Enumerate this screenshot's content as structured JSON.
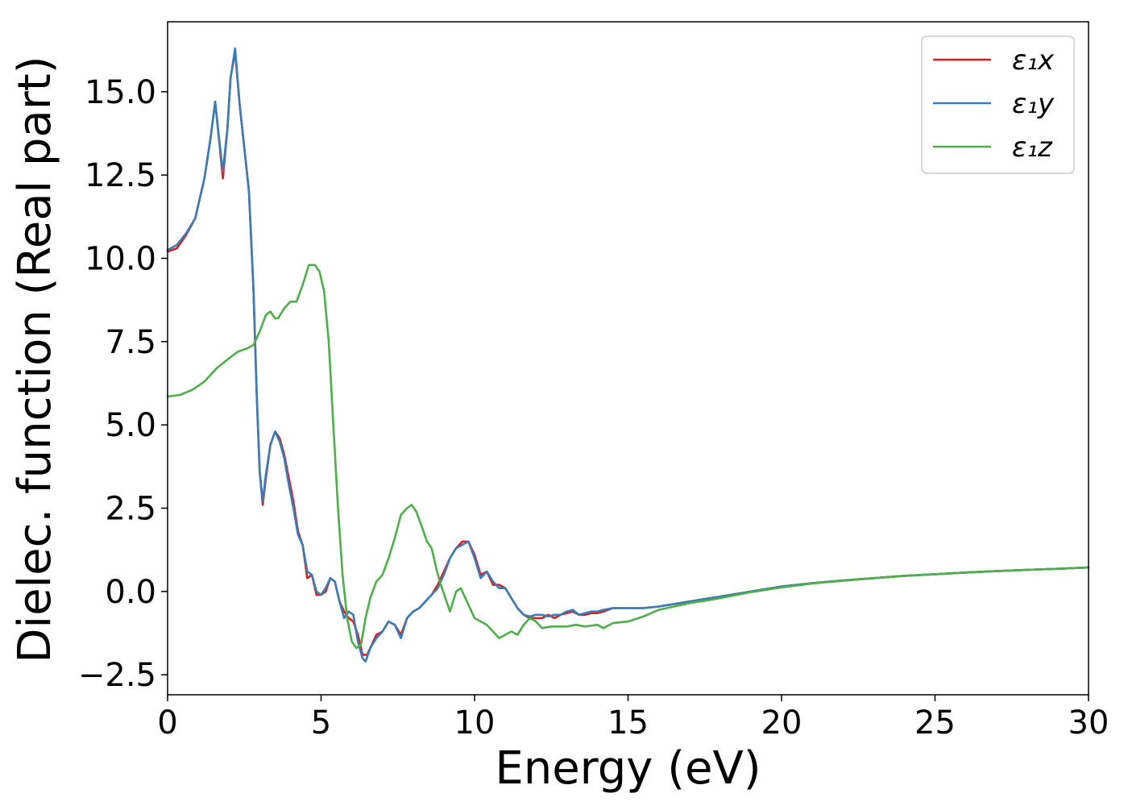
{
  "chart_data": {
    "type": "line",
    "title": "",
    "xlabel": "Energy (eV)",
    "ylabel": "Dielec. function (Real part)",
    "xlim": [
      0,
      30
    ],
    "ylim": [
      -3.1,
      17.1
    ],
    "xticks": [
      0,
      5,
      10,
      15,
      20,
      25,
      30
    ],
    "xtick_labels": [
      "0",
      "5",
      "10",
      "15",
      "20",
      "25",
      "30"
    ],
    "yticks": [
      -2.5,
      0.0,
      2.5,
      5.0,
      7.5,
      10.0,
      12.5,
      15.0
    ],
    "ytick_labels": [
      "−2.5",
      "0.0",
      "2.5",
      "5.0",
      "7.5",
      "10.0",
      "12.5",
      "15.0"
    ],
    "grid": false,
    "legend_position": "top-right",
    "series": [
      {
        "name": "ε₁x",
        "color": "#e41a1c",
        "points": [
          [
            0,
            10.2
          ],
          [
            0.3,
            10.3
          ],
          [
            0.6,
            10.7
          ],
          [
            0.9,
            11.2
          ],
          [
            1.2,
            12.4
          ],
          [
            1.4,
            13.6
          ],
          [
            1.55,
            14.7
          ],
          [
            1.65,
            13.8
          ],
          [
            1.8,
            12.4
          ],
          [
            1.95,
            13.9
          ],
          [
            2.05,
            15.4
          ],
          [
            2.2,
            16.2
          ],
          [
            2.35,
            14.6
          ],
          [
            2.5,
            13.3
          ],
          [
            2.65,
            12.0
          ],
          [
            2.8,
            9.0
          ],
          [
            2.9,
            6.0
          ],
          [
            3.0,
            3.6
          ],
          [
            3.1,
            2.6
          ],
          [
            3.2,
            3.4
          ],
          [
            3.35,
            4.4
          ],
          [
            3.5,
            4.8
          ],
          [
            3.65,
            4.6
          ],
          [
            3.8,
            4.1
          ],
          [
            3.95,
            3.4
          ],
          [
            4.1,
            2.7
          ],
          [
            4.25,
            1.8
          ],
          [
            4.4,
            1.4
          ],
          [
            4.55,
            0.4
          ],
          [
            4.7,
            0.5
          ],
          [
            4.85,
            -0.1
          ],
          [
            5.0,
            -0.1
          ],
          [
            5.15,
            0.0
          ],
          [
            5.3,
            0.4
          ],
          [
            5.45,
            0.3
          ],
          [
            5.6,
            -0.3
          ],
          [
            5.75,
            -0.6
          ],
          [
            5.9,
            -0.8
          ],
          [
            6.05,
            -0.9
          ],
          [
            6.2,
            -1.3
          ],
          [
            6.35,
            -1.9
          ],
          [
            6.5,
            -1.9
          ],
          [
            6.65,
            -1.6
          ],
          [
            6.8,
            -1.3
          ],
          [
            7.0,
            -1.2
          ],
          [
            7.2,
            -0.9
          ],
          [
            7.4,
            -1.0
          ],
          [
            7.6,
            -1.3
          ],
          [
            7.8,
            -0.8
          ],
          [
            8.0,
            -0.6
          ],
          [
            8.2,
            -0.5
          ],
          [
            8.4,
            -0.3
          ],
          [
            8.6,
            -0.1
          ],
          [
            8.8,
            0.2
          ],
          [
            9.0,
            0.6
          ],
          [
            9.2,
            1.0
          ],
          [
            9.4,
            1.3
          ],
          [
            9.6,
            1.5
          ],
          [
            9.8,
            1.5
          ],
          [
            10.0,
            1.1
          ],
          [
            10.2,
            0.5
          ],
          [
            10.4,
            0.6
          ],
          [
            10.6,
            0.2
          ],
          [
            10.8,
            0.2
          ],
          [
            11.0,
            0.1
          ],
          [
            11.2,
            -0.2
          ],
          [
            11.4,
            -0.5
          ],
          [
            11.6,
            -0.7
          ],
          [
            11.8,
            -0.8
          ],
          [
            12.0,
            -0.8
          ],
          [
            12.2,
            -0.8
          ],
          [
            12.4,
            -0.7
          ],
          [
            12.6,
            -0.8
          ],
          [
            12.8,
            -0.7
          ],
          [
            13.0,
            -0.65
          ],
          [
            13.2,
            -0.6
          ],
          [
            13.4,
            -0.7
          ],
          [
            13.6,
            -0.7
          ],
          [
            13.8,
            -0.65
          ],
          [
            14.0,
            -0.65
          ],
          [
            14.2,
            -0.6
          ],
          [
            14.5,
            -0.5
          ],
          [
            15.0,
            -0.5
          ],
          [
            15.5,
            -0.5
          ],
          [
            16.0,
            -0.45
          ],
          [
            17.0,
            -0.3
          ],
          [
            18.0,
            -0.15
          ],
          [
            19.0,
            0.0
          ],
          [
            20.0,
            0.15
          ],
          [
            21.0,
            0.25
          ],
          [
            22.0,
            0.33
          ],
          [
            23.0,
            0.4
          ],
          [
            24.0,
            0.47
          ],
          [
            25.0,
            0.52
          ],
          [
            26.0,
            0.57
          ],
          [
            27.0,
            0.61
          ],
          [
            28.0,
            0.65
          ],
          [
            29.0,
            0.68
          ],
          [
            30.0,
            0.72
          ]
        ]
      },
      {
        "name": "ε₁y",
        "color": "#377eb8",
        "points": [
          [
            0,
            10.25
          ],
          [
            0.3,
            10.4
          ],
          [
            0.6,
            10.75
          ],
          [
            0.9,
            11.2
          ],
          [
            1.2,
            12.4
          ],
          [
            1.4,
            13.6
          ],
          [
            1.55,
            14.7
          ],
          [
            1.65,
            13.8
          ],
          [
            1.8,
            12.6
          ],
          [
            1.95,
            13.9
          ],
          [
            2.05,
            15.4
          ],
          [
            2.2,
            16.3
          ],
          [
            2.35,
            14.6
          ],
          [
            2.5,
            13.3
          ],
          [
            2.65,
            12.0
          ],
          [
            2.8,
            9.0
          ],
          [
            2.9,
            6.0
          ],
          [
            3.0,
            3.6
          ],
          [
            3.1,
            2.7
          ],
          [
            3.2,
            3.5
          ],
          [
            3.35,
            4.4
          ],
          [
            3.5,
            4.8
          ],
          [
            3.65,
            4.5
          ],
          [
            3.8,
            4.0
          ],
          [
            3.95,
            3.2
          ],
          [
            4.1,
            2.5
          ],
          [
            4.25,
            1.7
          ],
          [
            4.4,
            1.4
          ],
          [
            4.55,
            0.6
          ],
          [
            4.7,
            0.5
          ],
          [
            4.85,
            0.0
          ],
          [
            5.0,
            -0.1
          ],
          [
            5.15,
            0.1
          ],
          [
            5.3,
            0.4
          ],
          [
            5.45,
            0.3
          ],
          [
            5.6,
            -0.3
          ],
          [
            5.75,
            -0.8
          ],
          [
            5.9,
            -0.6
          ],
          [
            6.05,
            -0.7
          ],
          [
            6.2,
            -1.5
          ],
          [
            6.35,
            -2.0
          ],
          [
            6.45,
            -2.1
          ],
          [
            6.6,
            -1.7
          ],
          [
            6.8,
            -1.4
          ],
          [
            7.0,
            -1.2
          ],
          [
            7.2,
            -0.9
          ],
          [
            7.4,
            -1.0
          ],
          [
            7.6,
            -1.4
          ],
          [
            7.8,
            -0.8
          ],
          [
            8.0,
            -0.6
          ],
          [
            8.2,
            -0.5
          ],
          [
            8.4,
            -0.3
          ],
          [
            8.6,
            -0.1
          ],
          [
            8.8,
            0.1
          ],
          [
            9.0,
            0.5
          ],
          [
            9.2,
            1.0
          ],
          [
            9.4,
            1.3
          ],
          [
            9.6,
            1.4
          ],
          [
            9.8,
            1.5
          ],
          [
            10.0,
            1.0
          ],
          [
            10.2,
            0.4
          ],
          [
            10.4,
            0.6
          ],
          [
            10.6,
            0.3
          ],
          [
            10.8,
            0.1
          ],
          [
            11.0,
            0.1
          ],
          [
            11.2,
            -0.2
          ],
          [
            11.4,
            -0.5
          ],
          [
            11.6,
            -0.7
          ],
          [
            11.8,
            -0.75
          ],
          [
            12.0,
            -0.7
          ],
          [
            12.2,
            -0.7
          ],
          [
            12.4,
            -0.75
          ],
          [
            12.6,
            -0.7
          ],
          [
            12.8,
            -0.7
          ],
          [
            13.0,
            -0.6
          ],
          [
            13.2,
            -0.55
          ],
          [
            13.4,
            -0.7
          ],
          [
            13.6,
            -0.65
          ],
          [
            13.8,
            -0.6
          ],
          [
            14.0,
            -0.6
          ],
          [
            14.2,
            -0.55
          ],
          [
            14.5,
            -0.5
          ],
          [
            15.0,
            -0.5
          ],
          [
            15.5,
            -0.5
          ],
          [
            16.0,
            -0.45
          ],
          [
            17.0,
            -0.3
          ],
          [
            18.0,
            -0.15
          ],
          [
            19.0,
            0.0
          ],
          [
            20.0,
            0.15
          ],
          [
            21.0,
            0.25
          ],
          [
            22.0,
            0.33
          ],
          [
            23.0,
            0.4
          ],
          [
            24.0,
            0.47
          ],
          [
            25.0,
            0.52
          ],
          [
            26.0,
            0.57
          ],
          [
            27.0,
            0.61
          ],
          [
            28.0,
            0.65
          ],
          [
            29.0,
            0.68
          ],
          [
            30.0,
            0.72
          ]
        ]
      },
      {
        "name": "ε₁z",
        "color": "#4daf4a",
        "points": [
          [
            0,
            5.85
          ],
          [
            0.4,
            5.9
          ],
          [
            0.8,
            6.05
          ],
          [
            1.2,
            6.3
          ],
          [
            1.6,
            6.7
          ],
          [
            2.0,
            7.0
          ],
          [
            2.3,
            7.2
          ],
          [
            2.6,
            7.3
          ],
          [
            2.8,
            7.4
          ],
          [
            3.0,
            7.8
          ],
          [
            3.2,
            8.3
          ],
          [
            3.35,
            8.4
          ],
          [
            3.5,
            8.2
          ],
          [
            3.6,
            8.2
          ],
          [
            3.8,
            8.5
          ],
          [
            4.0,
            8.7
          ],
          [
            4.2,
            8.7
          ],
          [
            4.4,
            9.2
          ],
          [
            4.6,
            9.8
          ],
          [
            4.8,
            9.8
          ],
          [
            4.95,
            9.6
          ],
          [
            5.1,
            9.0
          ],
          [
            5.25,
            7.5
          ],
          [
            5.4,
            5.0
          ],
          [
            5.55,
            2.5
          ],
          [
            5.7,
            0.5
          ],
          [
            5.85,
            -0.8
          ],
          [
            6.0,
            -1.5
          ],
          [
            6.15,
            -1.7
          ],
          [
            6.3,
            -1.6
          ],
          [
            6.45,
            -0.8
          ],
          [
            6.6,
            -0.2
          ],
          [
            6.8,
            0.3
          ],
          [
            7.0,
            0.5
          ],
          [
            7.2,
            1.0
          ],
          [
            7.4,
            1.6
          ],
          [
            7.6,
            2.3
          ],
          [
            7.8,
            2.5
          ],
          [
            7.95,
            2.6
          ],
          [
            8.1,
            2.4
          ],
          [
            8.3,
            1.9
          ],
          [
            8.45,
            1.5
          ],
          [
            8.6,
            1.3
          ],
          [
            8.75,
            0.7
          ],
          [
            8.9,
            0.2
          ],
          [
            9.05,
            -0.2
          ],
          [
            9.2,
            -0.6
          ],
          [
            9.4,
            0.0
          ],
          [
            9.55,
            0.1
          ],
          [
            9.7,
            -0.2
          ],
          [
            9.85,
            -0.5
          ],
          [
            10.0,
            -0.8
          ],
          [
            10.2,
            -0.9
          ],
          [
            10.4,
            -1.0
          ],
          [
            10.6,
            -1.2
          ],
          [
            10.8,
            -1.4
          ],
          [
            11.0,
            -1.3
          ],
          [
            11.2,
            -1.2
          ],
          [
            11.4,
            -1.3
          ],
          [
            11.6,
            -1.0
          ],
          [
            11.8,
            -0.8
          ],
          [
            12.0,
            -0.9
          ],
          [
            12.2,
            -1.1
          ],
          [
            12.5,
            -1.05
          ],
          [
            12.8,
            -1.05
          ],
          [
            13.0,
            -1.05
          ],
          [
            13.3,
            -1.0
          ],
          [
            13.6,
            -1.05
          ],
          [
            14.0,
            -1.0
          ],
          [
            14.2,
            -1.1
          ],
          [
            14.5,
            -0.95
          ],
          [
            15.0,
            -0.9
          ],
          [
            15.5,
            -0.75
          ],
          [
            16.0,
            -0.55
          ],
          [
            16.5,
            -0.45
          ],
          [
            17.0,
            -0.35
          ],
          [
            17.5,
            -0.28
          ],
          [
            18.0,
            -0.2
          ],
          [
            19.0,
            -0.02
          ],
          [
            20.0,
            0.12
          ],
          [
            21.0,
            0.24
          ],
          [
            22.0,
            0.32
          ],
          [
            23.0,
            0.4
          ],
          [
            24.0,
            0.47
          ],
          [
            25.0,
            0.52
          ],
          [
            26.0,
            0.57
          ],
          [
            27.0,
            0.61
          ],
          [
            28.0,
            0.65
          ],
          [
            29.0,
            0.68
          ],
          [
            30.0,
            0.72
          ]
        ]
      }
    ]
  }
}
